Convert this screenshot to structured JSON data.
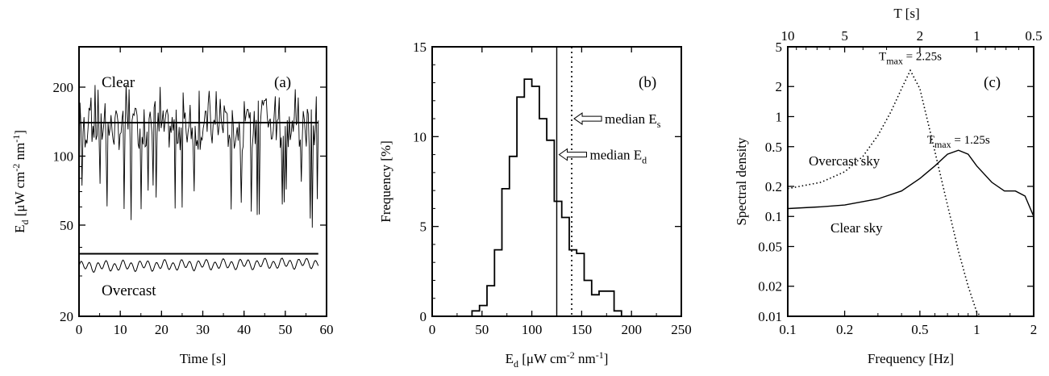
{
  "chart_data": [
    {
      "id": "a",
      "type": "line",
      "panel_label": "(a)",
      "xlabel": "Time [s]",
      "ylabel": {
        "main": "E",
        "sub": "d",
        "rest": " [μW cm",
        "sup1": "-2",
        "mid": " nm",
        "sup2": "-1",
        "end": "]"
      },
      "xlim": [
        0,
        60
      ],
      "ylim": [
        20,
        300
      ],
      "yscale": "log",
      "xticks": [
        0,
        10,
        20,
        30,
        40,
        50,
        60
      ],
      "yticks": [
        20,
        50,
        100,
        200
      ],
      "series": [
        {
          "name": "Clear",
          "kind": "fluctuating",
          "t_start": 0,
          "t_end": 58,
          "points": 240,
          "center": 135,
          "min": 48,
          "max": 205
        },
        {
          "name": "Overcast",
          "kind": "oscillating",
          "t_start": 0,
          "t_end": 58,
          "points": 240,
          "center": 33,
          "amplitude": 1.4
        }
      ],
      "hlines": [
        {
          "value": 140,
          "from": 0,
          "to": 58
        },
        {
          "value": 37.5,
          "from": 0,
          "to": 58
        }
      ]
    },
    {
      "id": "b",
      "type": "bar",
      "style": "step-histogram",
      "panel_label": "(b)",
      "xlabel": {
        "main": "E",
        "sub": "d",
        "rest": " [μW cm",
        "sup1": "-2",
        "mid": " nm",
        "sup2": "-1",
        "end": "]"
      },
      "ylabel": "Frequency [%]",
      "xlim": [
        0,
        250
      ],
      "ylim": [
        0,
        15
      ],
      "xticks": [
        0,
        50,
        100,
        150,
        200,
        250
      ],
      "yticks": [
        0,
        5,
        10,
        15
      ],
      "bin_width": 7.5,
      "bin_start": 40,
      "values": [
        0.3,
        0.6,
        1.7,
        3.7,
        7.1,
        8.9,
        12.2,
        13.2,
        12.8,
        11.0,
        9.8,
        6.4,
        5.5,
        3.7,
        3.5,
        2.0,
        1.2,
        1.4,
        1.4,
        0.3
      ],
      "vlines": [
        {
          "value": 125,
          "style": "solid",
          "label": {
            "main": "median E",
            "sub": "d"
          },
          "label_y": 9.0
        },
        {
          "value": 140,
          "style": "dotted",
          "label": {
            "main": "median E",
            "sub": "s"
          },
          "label_y": 11.0
        }
      ]
    },
    {
      "id": "c",
      "type": "line",
      "panel_label": "(c)",
      "xlabel": "Frequency [Hz]",
      "ylabel": "Spectral density",
      "top_axis_label": "T [s]",
      "xlim": [
        0.1,
        2
      ],
      "ylim": [
        0.01,
        5
      ],
      "xscale": "log",
      "yscale": "log",
      "xticks": [
        0.1,
        0.2,
        0.5,
        1,
        2
      ],
      "xtick_labels": [
        "0.1",
        "0.2",
        "0.5",
        "1",
        "2"
      ],
      "yticks": [
        0.01,
        0.02,
        0.05,
        0.1,
        0.2,
        0.5,
        1,
        2,
        5
      ],
      "ytick_labels": [
        "0.01",
        "0.02",
        "0.05",
        "0.1",
        "0.2",
        "0.5",
        "1",
        "2",
        "5"
      ],
      "top_ticks": [
        10,
        5,
        2,
        1,
        0.5
      ],
      "top_tick_labels": [
        "10",
        "5",
        "2",
        "1",
        "0.5"
      ],
      "series": [
        {
          "name": "Clear sky",
          "style": "solid",
          "x": [
            0.1,
            0.15,
            0.2,
            0.3,
            0.4,
            0.5,
            0.6,
            0.7,
            0.8,
            0.9,
            1.0,
            1.2,
            1.4,
            1.6,
            1.8,
            2.0
          ],
          "y": [
            0.12,
            0.125,
            0.13,
            0.15,
            0.18,
            0.24,
            0.32,
            0.42,
            0.46,
            0.42,
            0.32,
            0.22,
            0.18,
            0.18,
            0.16,
            0.1
          ]
        },
        {
          "name": "Overcast sky",
          "style": "dotted",
          "x": [
            0.1,
            0.15,
            0.2,
            0.25,
            0.3,
            0.35,
            0.4,
            0.445,
            0.5,
            0.6,
            0.7,
            0.8,
            0.9,
            1.0,
            1.05
          ],
          "y": [
            0.19,
            0.22,
            0.28,
            0.4,
            0.65,
            1.1,
            1.9,
            2.9,
            1.9,
            0.45,
            0.13,
            0.045,
            0.02,
            0.011,
            0.01
          ]
        }
      ],
      "annotations": [
        {
          "main": "T",
          "sub": "max",
          "rest": " = 2.25s",
          "x": 0.445,
          "y": 3.3
        },
        {
          "main": "T",
          "sub": "max",
          "rest": " = 1.25s",
          "x": 0.8,
          "y": 0.48
        }
      ]
    }
  ]
}
